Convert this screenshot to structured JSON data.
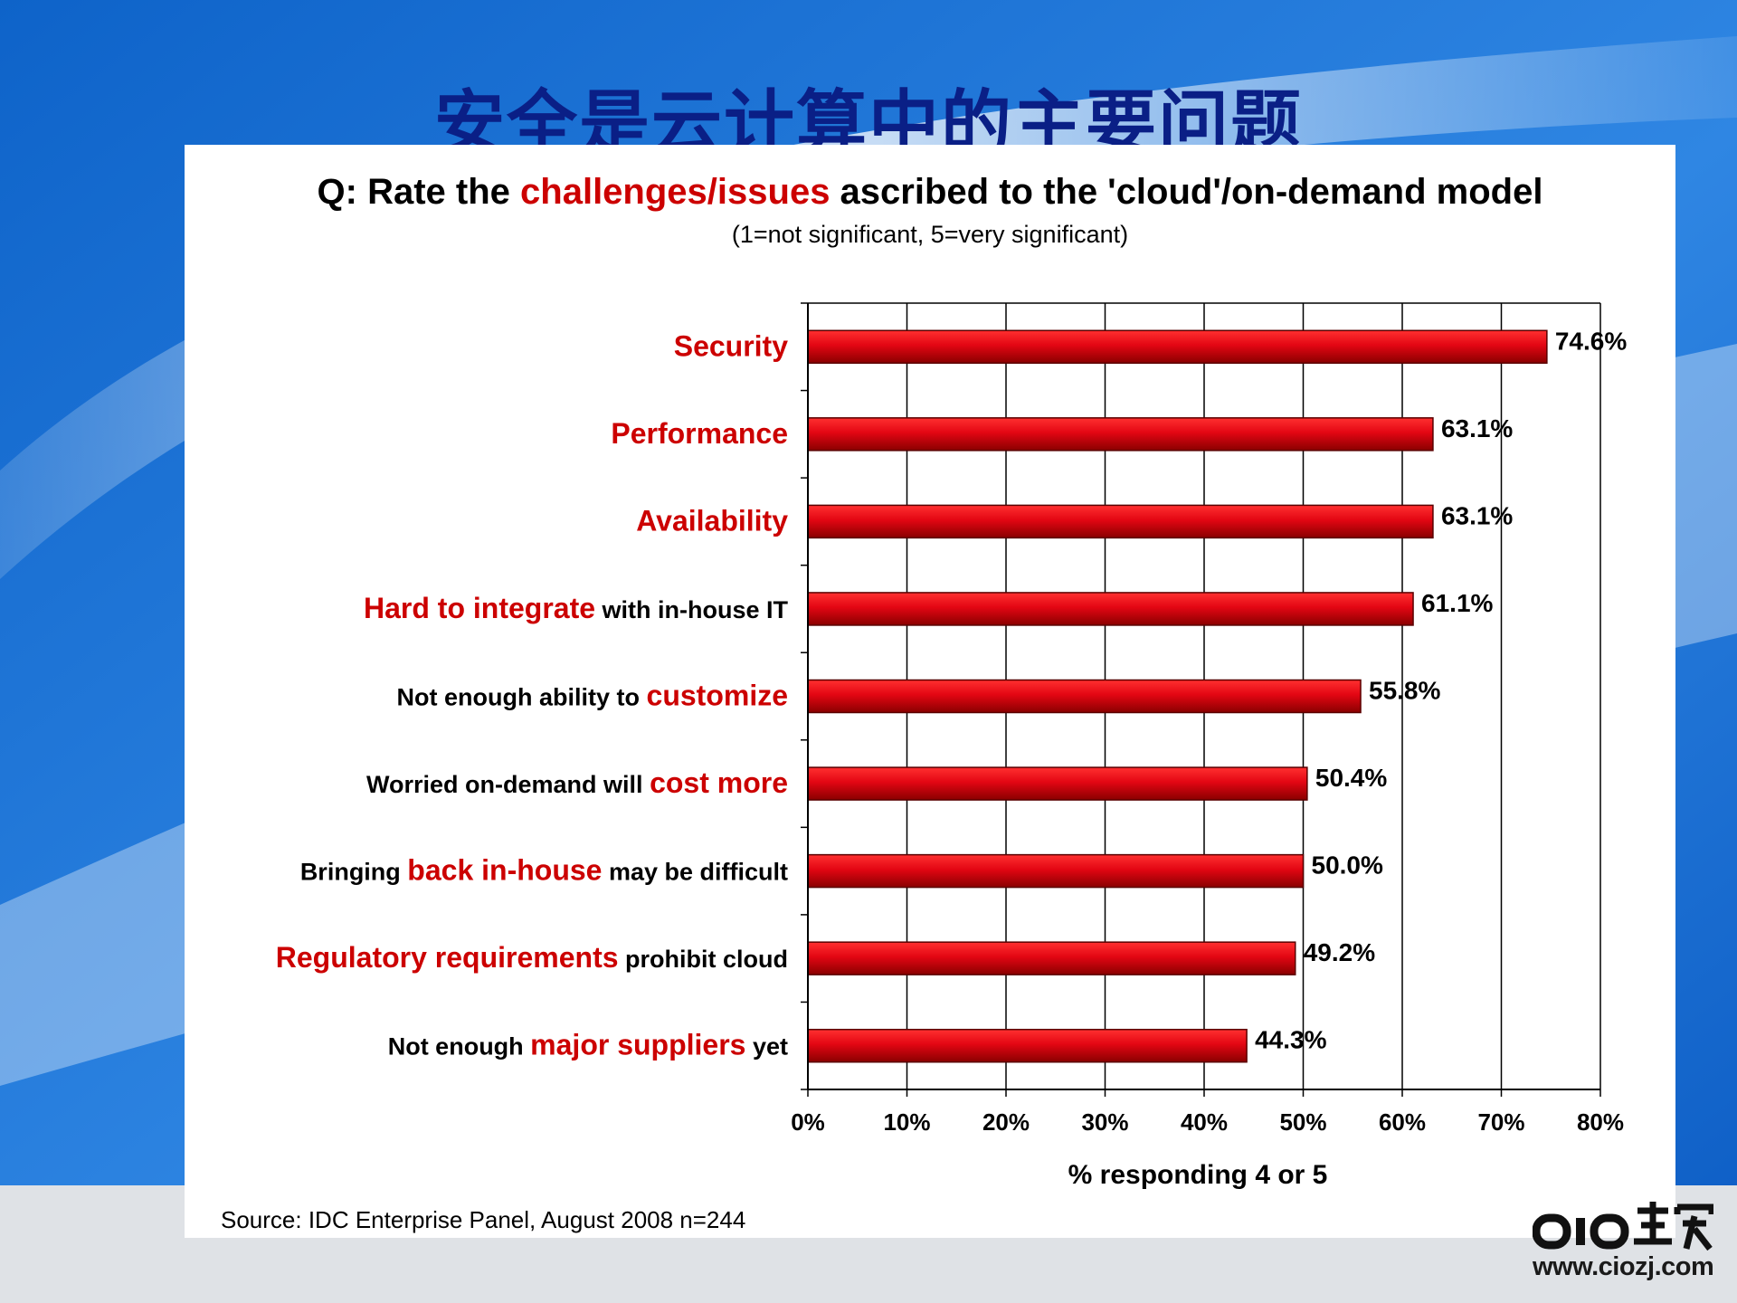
{
  "slide": {
    "title": "安全是云计算中的主要问题"
  },
  "watermark": {
    "url": "www.ciozj.com"
  },
  "colors": {
    "title": "#0a1f86",
    "bar": "#e30613",
    "bar_dark": "#7a0000",
    "highlight_text": "#cc0000",
    "plain_text": "#000000"
  },
  "chart_data": {
    "type": "bar",
    "orientation": "horizontal",
    "title_parts": [
      {
        "text": "Q: Rate the ",
        "highlight": false
      },
      {
        "text": "challenges/issues",
        "highlight": true
      },
      {
        "text": " ascribed to the 'cloud'/on-demand model",
        "highlight": false
      }
    ],
    "subtitle": "(1=not significant, 5=very significant)",
    "categories": [
      {
        "parts": [
          {
            "text": "Security",
            "highlight": true
          }
        ]
      },
      {
        "parts": [
          {
            "text": "Performance",
            "highlight": true
          }
        ]
      },
      {
        "parts": [
          {
            "text": "Availability",
            "highlight": true
          }
        ]
      },
      {
        "parts": [
          {
            "text": "Hard to integrate",
            "highlight": true
          },
          {
            "text": " with in-house IT",
            "highlight": false
          }
        ]
      },
      {
        "parts": [
          {
            "text": "Not enough ability to ",
            "highlight": false
          },
          {
            "text": "customize",
            "highlight": true
          }
        ]
      },
      {
        "parts": [
          {
            "text": "Worried on-demand will ",
            "highlight": false
          },
          {
            "text": "cost more",
            "highlight": true
          }
        ]
      },
      {
        "parts": [
          {
            "text": "Bringing ",
            "highlight": false
          },
          {
            "text": "back in-house",
            "highlight": true
          },
          {
            "text": " may be difficult",
            "highlight": false
          }
        ]
      },
      {
        "parts": [
          {
            "text": "Regulatory requirements",
            "highlight": true
          },
          {
            "text": " prohibit cloud",
            "highlight": false
          }
        ]
      },
      {
        "parts": [
          {
            "text": "Not enough ",
            "highlight": false
          },
          {
            "text": "major suppliers",
            "highlight": true
          },
          {
            "text": " yet",
            "highlight": false
          }
        ]
      }
    ],
    "values": [
      74.6,
      63.1,
      63.1,
      61.1,
      55.8,
      50.4,
      50.0,
      49.2,
      44.3
    ],
    "value_labels": [
      "74.6%",
      "63.1%",
      "63.1%",
      "61.1%",
      "55.8%",
      "50.4%",
      "50.0%",
      "49.2%",
      "44.3%"
    ],
    "xlim": [
      0,
      80
    ],
    "xticks": [
      0,
      10,
      20,
      30,
      40,
      50,
      60,
      70,
      80
    ],
    "xtick_labels": [
      "0%",
      "10%",
      "20%",
      "30%",
      "40%",
      "50%",
      "60%",
      "70%",
      "80%"
    ],
    "xlabel": "% responding 4 or 5",
    "grid": true,
    "source": "Source: IDC Enterprise Panel, August 2008  n=244"
  }
}
